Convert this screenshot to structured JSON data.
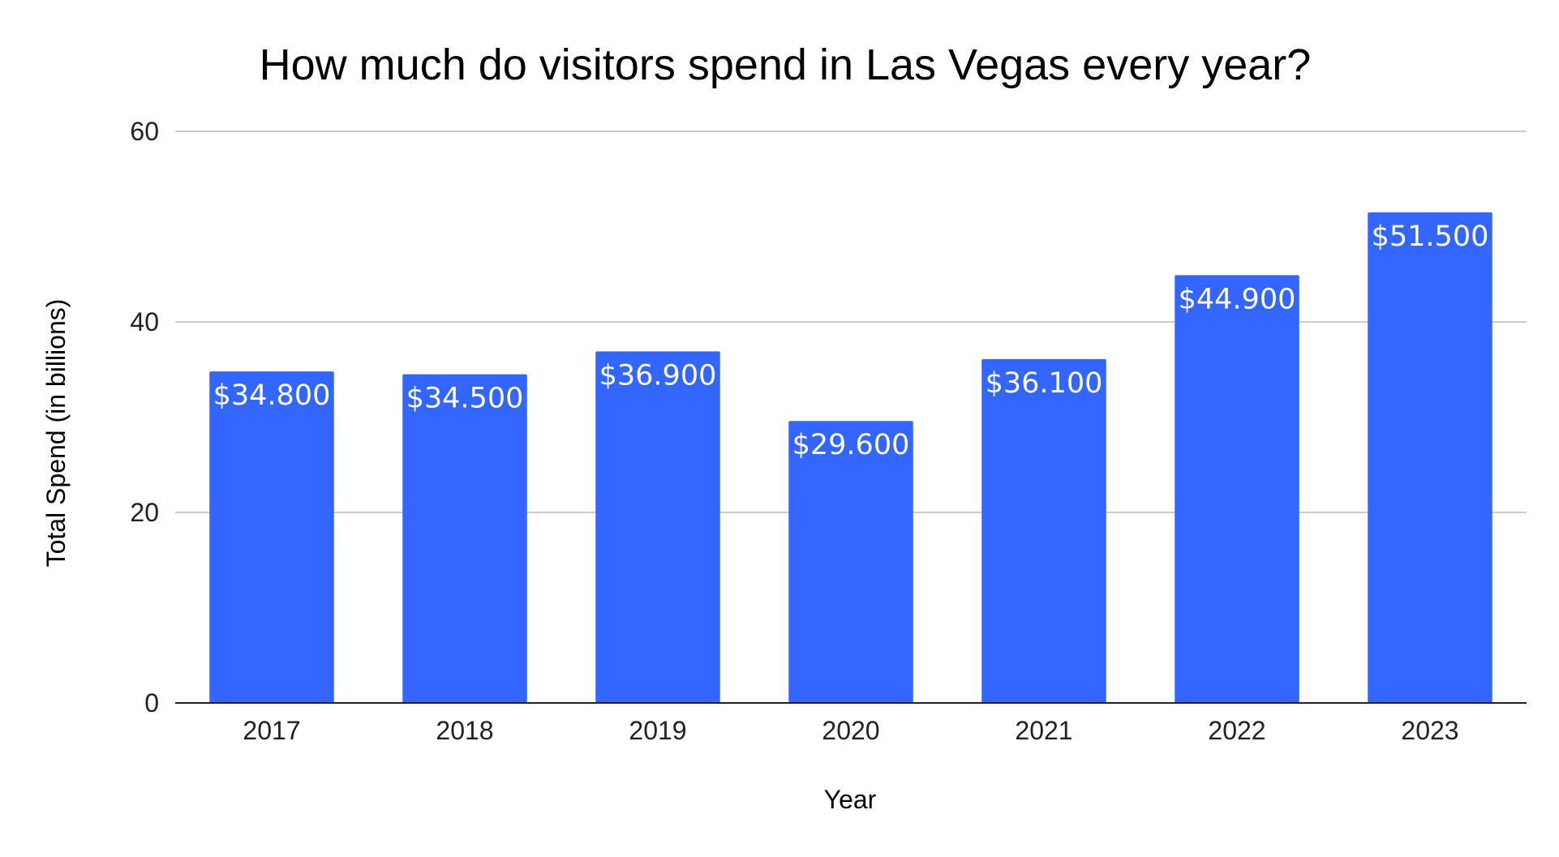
{
  "chart_data": {
    "type": "bar",
    "title": "How much do visitors spend in Las Vegas every year?",
    "xlabel": "Year",
    "ylabel": "Total Spend (in billions)",
    "categories": [
      "2017",
      "2018",
      "2019",
      "2020",
      "2021",
      "2022",
      "2023"
    ],
    "values": [
      34.8,
      34.5,
      36.9,
      29.6,
      36.1,
      44.9,
      51.5
    ],
    "data_labels": [
      "$34.800",
      "$34.500",
      "$36.900",
      "$29.600",
      "$36.100",
      "$44.900",
      "$51.500"
    ],
    "ylim": [
      0,
      60
    ],
    "yticks": [
      0,
      20,
      40,
      60
    ],
    "grid": true,
    "legend": "none",
    "bar_color": "#3366ff"
  }
}
